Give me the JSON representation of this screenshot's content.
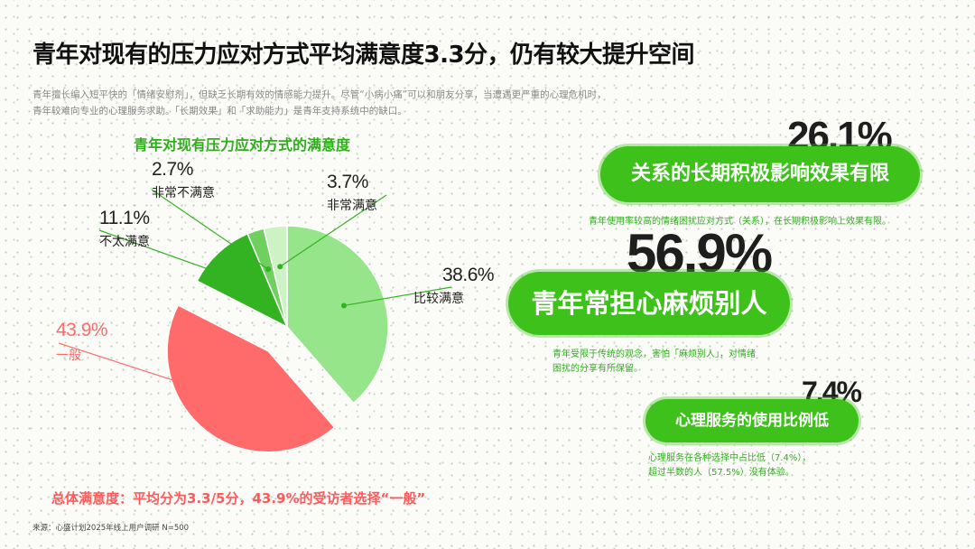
{
  "header": {
    "title": "青年对现有的压力应对方式平均满意度3.3分，仍有较大提升空间",
    "intro": "青年擅长编入短平快的「情绪安慰剂」，但缺乏长期有效的情感能力提升。尽管“小病小痛”可以和朋友分享，当遭遇更严重的心理危机时，青年较难向专业的心理服务求助。「长期效果」和「求助能力」是青年支持系统中的缺口。"
  },
  "chart_data": {
    "type": "pie",
    "title": "青年对现有压力应对方式的满意度",
    "slices": [
      {
        "label": "比较满意",
        "value": 38.6,
        "display": "38.6%",
        "color": "#96e58a"
      },
      {
        "label": "一般",
        "value": 43.9,
        "display": "43.9%",
        "color": "#ff6b6b"
      },
      {
        "label": "不太满意",
        "value": 11.1,
        "display": "11.1%",
        "color": "#34b322"
      },
      {
        "label": "非常不满意",
        "value": 2.7,
        "display": "2.7%",
        "color": "#6fcf5f"
      },
      {
        "label": "非常满意",
        "value": 3.7,
        "display": "3.7%",
        "color": "#cdf2c4"
      }
    ],
    "exploded": "一般",
    "label_color_default": "#222222",
    "label_color_highlight": "#ff6b6b",
    "leader_color": "#34b322"
  },
  "summary": "总体满意度：平均分为3.3/5分，43.9%的受访者选择“一般”",
  "source": "来源：心盛计划2025年线上用户调研 N=500",
  "insights": [
    {
      "number": "26.1%",
      "badge": "关系的长期积极影响效果有限",
      "caption": "青年使用率较高的情绪困扰应对方式（关系），在长期积极影响上效果有限。"
    },
    {
      "number": "56.9%",
      "badge": "青年常担心麻烦别人",
      "caption_line1": "青年受限于传统的观念，害怕「麻烦别人」，对情绪",
      "caption_line2": "困扰的分享有所保留。"
    },
    {
      "number": "7.4%",
      "badge": "心理服务的使用比例低",
      "caption_line1": "心理服务在各种选择中占比低（7.4%），",
      "caption_line2": "超过半数的人（57.5%）没有体验。"
    }
  ],
  "colors": {
    "brand_green": "#3ec21b",
    "highlight_red": "#ff6b6b"
  }
}
